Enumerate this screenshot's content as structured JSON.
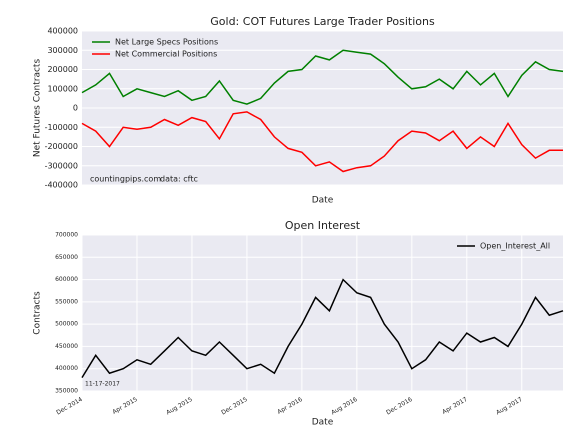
{
  "chart_data": [
    {
      "type": "line",
      "title": "Gold: COT Futures Large Trader Positions",
      "xlabel": "Date",
      "ylabel": "Net Futures Contracts",
      "x": [
        "2014-12",
        "2015-01",
        "2015-02",
        "2015-03",
        "2015-04",
        "2015-05",
        "2015-06",
        "2015-07",
        "2015-08",
        "2015-09",
        "2015-10",
        "2015-11",
        "2015-12",
        "2016-01",
        "2016-02",
        "2016-03",
        "2016-04",
        "2016-05",
        "2016-06",
        "2016-07",
        "2016-08",
        "2016-09",
        "2016-10",
        "2016-11",
        "2016-12",
        "2017-01",
        "2017-02",
        "2017-03",
        "2017-04",
        "2017-05",
        "2017-06",
        "2017-07",
        "2017-08",
        "2017-09",
        "2017-10",
        "2017-11"
      ],
      "xlim": [
        "2014-12",
        "2017-11"
      ],
      "series": [
        {
          "name": "Net Large Specs Positions",
          "color": "#008000",
          "values": [
            80000,
            120000,
            180000,
            60000,
            100000,
            80000,
            60000,
            90000,
            40000,
            60000,
            140000,
            40000,
            20000,
            50000,
            130000,
            190000,
            200000,
            270000,
            250000,
            300000,
            290000,
            280000,
            230000,
            160000,
            100000,
            110000,
            150000,
            100000,
            190000,
            120000,
            180000,
            60000,
            170000,
            240000,
            200000,
            190000
          ]
        },
        {
          "name": "Net Commercial Positions",
          "color": "#ff0000",
          "values": [
            -80000,
            -120000,
            -200000,
            -100000,
            -110000,
            -100000,
            -60000,
            -90000,
            -50000,
            -70000,
            -160000,
            -30000,
            -20000,
            -60000,
            -150000,
            -210000,
            -230000,
            -300000,
            -280000,
            -330000,
            -310000,
            -300000,
            -250000,
            -170000,
            -120000,
            -130000,
            -170000,
            -120000,
            -210000,
            -150000,
            -200000,
            -80000,
            -190000,
            -260000,
            -220000,
            -220000
          ]
        }
      ],
      "ylim": [
        -400000,
        400000
      ],
      "yticks": [
        -400000,
        -300000,
        -200000,
        -100000,
        0,
        100000,
        200000,
        300000,
        400000
      ],
      "grid": true,
      "legend": "upper-left",
      "annotations": [
        "countingpips.com",
        "data: cftc"
      ]
    },
    {
      "type": "line",
      "title": "Open Interest",
      "xlabel": "Date",
      "ylabel": "Contracts",
      "x": [
        "2014-12",
        "2015-01",
        "2015-02",
        "2015-03",
        "2015-04",
        "2015-05",
        "2015-06",
        "2015-07",
        "2015-08",
        "2015-09",
        "2015-10",
        "2015-11",
        "2015-12",
        "2016-01",
        "2016-02",
        "2016-03",
        "2016-04",
        "2016-05",
        "2016-06",
        "2016-07",
        "2016-08",
        "2016-09",
        "2016-10",
        "2016-11",
        "2016-12",
        "2017-01",
        "2017-02",
        "2017-03",
        "2017-04",
        "2017-05",
        "2017-06",
        "2017-07",
        "2017-08",
        "2017-09",
        "2017-10",
        "2017-11"
      ],
      "xlim": [
        "2014-12",
        "2017-11"
      ],
      "xticks": [
        {
          "value": "2014-12",
          "label": "Dec 2014"
        },
        {
          "value": "2015-04",
          "label": "Apr 2015"
        },
        {
          "value": "2015-08",
          "label": "Aug 2015"
        },
        {
          "value": "2015-12",
          "label": "Dec 2015"
        },
        {
          "value": "2016-04",
          "label": "Apr 2016"
        },
        {
          "value": "2016-08",
          "label": "Aug 2016"
        },
        {
          "value": "2016-12",
          "label": "Dec 2016"
        },
        {
          "value": "2017-04",
          "label": "Apr 2017"
        },
        {
          "value": "2017-08",
          "label": "Aug 2017"
        }
      ],
      "series": [
        {
          "name": "Open_Interest_All",
          "color": "#000000",
          "values": [
            380000,
            430000,
            390000,
            400000,
            420000,
            410000,
            440000,
            470000,
            440000,
            430000,
            460000,
            430000,
            400000,
            410000,
            390000,
            450000,
            500000,
            560000,
            530000,
            600000,
            570000,
            560000,
            500000,
            460000,
            400000,
            420000,
            460000,
            440000,
            480000,
            460000,
            470000,
            450000,
            500000,
            560000,
            520000,
            530000
          ]
        }
      ],
      "ylim": [
        350000,
        700000
      ],
      "yticks": [
        350000,
        400000,
        450000,
        500000,
        550000,
        600000,
        650000,
        700000
      ],
      "grid": true,
      "legend": "upper-right",
      "annotations": [
        "11-17-2017"
      ]
    }
  ]
}
